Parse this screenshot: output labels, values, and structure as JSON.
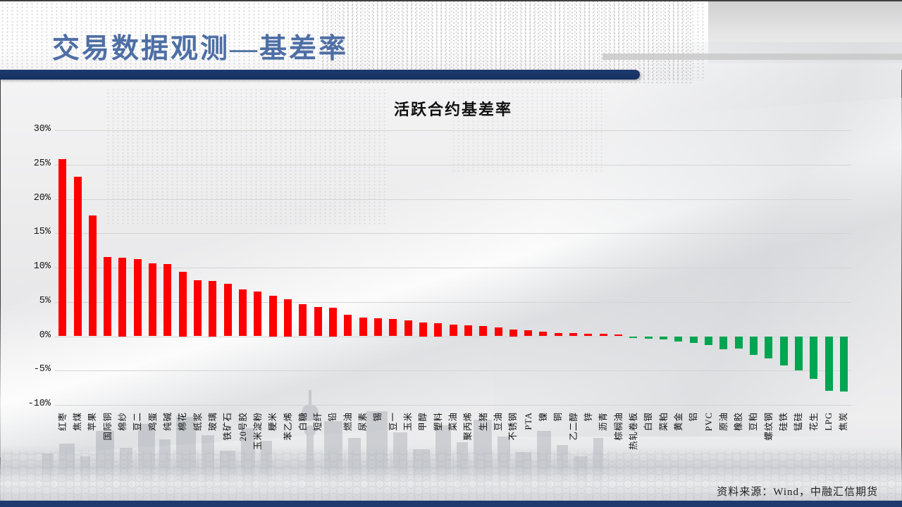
{
  "header": {
    "title": "交易数据观测—基差率"
  },
  "footer": {
    "source_note": "资料来源：Wind，中融汇信期货"
  },
  "colors": {
    "navy": "#1e3a6e",
    "header_title_blue": "#4e6fa5",
    "positive_bar": "#fe0000",
    "negative_bar": "#00a551",
    "gridline": "#d4d4d5",
    "axis_text": "#141414"
  },
  "chart_data": {
    "type": "bar",
    "title": "活跃合约基差率",
    "xlabel": "",
    "ylabel": "",
    "ylim": [
      -10,
      30
    ],
    "ytick_values": [
      30,
      25,
      20,
      15,
      10,
      5,
      0,
      -5,
      -10
    ],
    "ytick_labels": [
      "30%",
      "25%",
      "20%",
      "15%",
      "10%",
      "5%",
      "0%",
      "-5%",
      "-10%"
    ],
    "grid": true,
    "legend": false,
    "categories": [
      "红枣",
      "焦煤",
      "苹果",
      "国际铜",
      "棉纱",
      "豆二",
      "鸡蛋",
      "纯碱",
      "棉花",
      "纸浆",
      "玻璃",
      "铁矿石",
      "20号胶",
      "玉米淀粉",
      "粳米",
      "苯乙烯",
      "白糖",
      "短纤",
      "铅",
      "燃油",
      "尿素",
      "锡",
      "豆一",
      "玉米",
      "甲醇",
      "塑料",
      "菜油",
      "聚丙烯",
      "生猪",
      "豆油",
      "不锈钢",
      "PTA",
      "镍",
      "铜",
      "乙二醇",
      "锌",
      "沥青",
      "棕榈油",
      "热轧卷板",
      "白银",
      "菜粕",
      "黄金",
      "铝",
      "PVC",
      "原油",
      "橡胶",
      "豆粕",
      "螺纹钢",
      "硅铁",
      "锰硅",
      "花生",
      "LPG",
      "焦炭"
    ],
    "values": [
      25.8,
      23.2,
      17.6,
      11.5,
      11.4,
      11.2,
      10.6,
      10.5,
      9.4,
      8.2,
      8.1,
      7.6,
      6.8,
      6.5,
      5.9,
      5.4,
      4.7,
      4.3,
      4.2,
      3.1,
      2.7,
      2.6,
      2.5,
      2.3,
      2.0,
      1.9,
      1.7,
      1.6,
      1.5,
      1.3,
      1.0,
      0.9,
      0.65,
      0.5,
      0.45,
      0.4,
      0.35,
      0.3,
      -0.2,
      -0.4,
      -0.5,
      -0.75,
      -1.0,
      -1.3,
      -1.9,
      -1.8,
      -2.7,
      -3.2,
      -4.25,
      -5.0,
      -6.2,
      -7.9,
      -8.0
    ],
    "positive_color": "#fe0000",
    "negative_color": "#00a551"
  }
}
